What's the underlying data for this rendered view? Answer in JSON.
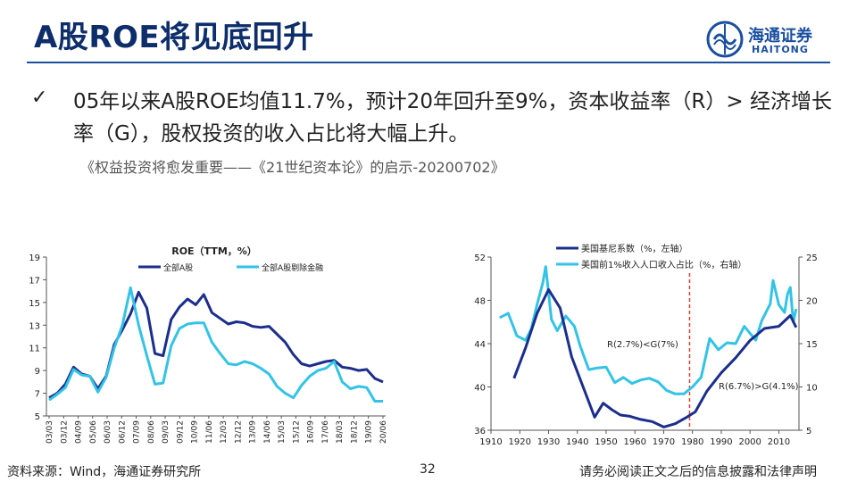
{
  "slide": {
    "title": "A股ROE将见底回升",
    "bullet": "05年以来A股ROE均值11.7%，预计20年回升至9%，资本收益率（R）> 经济增长率（G），股权投资的收入占比将大幅上升。",
    "reference": "《权益投资将愈发重要——《21世纪资本论》的启示-20200702》",
    "source": "资料来源：Wind，海通证券研究所",
    "page_number": "32",
    "disclaimer": "请务必阅读正文之后的信息披露和法律声明",
    "logo_cn": "海通证券",
    "logo_en": "HAITONG",
    "check_glyph": "✓"
  },
  "colors": {
    "dark_series": "#1b2e8c",
    "light_series": "#33c3e6",
    "title": "#0d2d6b",
    "dashed_line": "#e23b2e"
  },
  "chart_data": [
    {
      "type": "line",
      "title": "ROE（TTM，%）",
      "ylim": [
        5,
        19
      ],
      "yticks": [
        5,
        7,
        9,
        11,
        13,
        15,
        17,
        19
      ],
      "x_tick_labels": [
        "03/03",
        "03/12",
        "04/09",
        "05/06",
        "06/03",
        "06/12",
        "07/09",
        "08/06",
        "09/03",
        "09/12",
        "10/09",
        "11/06",
        "12/03",
        "12/12",
        "13/09",
        "14/06",
        "15/03",
        "15/12",
        "16/09",
        "17/06",
        "18/03",
        "18/12",
        "19/09",
        "20/06"
      ],
      "legend_position": "top",
      "series": [
        {
          "name": "全部A股",
          "values": [
            6.6,
            7.0,
            7.8,
            9.3,
            8.7,
            8.5,
            7.4,
            8.5,
            11.3,
            12.6,
            14.0,
            15.9,
            14.5,
            10.5,
            10.3,
            13.5,
            14.6,
            15.3,
            14.8,
            15.7,
            14.1,
            13.6,
            13.1,
            13.3,
            13.2,
            12.9,
            12.8,
            12.9,
            12.2,
            11.5,
            10.4,
            9.6,
            9.4,
            9.6,
            9.8,
            9.9,
            9.3,
            9.2,
            9.0,
            9.1,
            8.3,
            8.0
          ]
        },
        {
          "name": "全部A股剔除金融",
          "values": [
            6.4,
            6.9,
            7.5,
            9.1,
            8.6,
            8.5,
            7.1,
            8.4,
            11.0,
            13.0,
            16.3,
            13.0,
            10.3,
            7.8,
            7.9,
            11.2,
            12.7,
            13.1,
            13.2,
            13.2,
            11.5,
            10.5,
            9.6,
            9.5,
            9.8,
            9.6,
            9.2,
            8.7,
            7.6,
            7.0,
            6.6,
            7.7,
            8.5,
            9.0,
            9.2,
            9.8,
            8.0,
            7.4,
            7.6,
            7.5,
            6.3,
            6.3
          ]
        }
      ]
    },
    {
      "type": "line",
      "x_tick_labels": [
        "1910",
        "1920",
        "1930",
        "1940",
        "1950",
        "1960",
        "1970",
        "1980",
        "1990",
        "2000",
        "2010"
      ],
      "xlim": [
        1910,
        2017
      ],
      "left_axis": {
        "ylim": [
          36,
          52
        ],
        "ticks": [
          36,
          40,
          44,
          48,
          52
        ]
      },
      "right_axis": {
        "ylim": [
          5,
          25
        ],
        "ticks": [
          5,
          10,
          15,
          20,
          25
        ]
      },
      "legend_position": "top-left",
      "annotations": [
        "R(2.7%)<G(7%)",
        "R(6.7%)>G(4.1%)"
      ],
      "vertical_reference_x": 1979,
      "series": [
        {
          "name": "美国基尼系数（%，左轴）",
          "axis": "left",
          "x": [
            1918,
            1922,
            1926,
            1930,
            1934,
            1938,
            1942,
            1946,
            1949,
            1952,
            1955,
            1958,
            1962,
            1966,
            1970,
            1974,
            1978,
            1981,
            1985,
            1990,
            1995,
            2000,
            2005,
            2010,
            2014,
            2016
          ],
          "y": [
            40.8,
            43.6,
            46.8,
            49.0,
            47.3,
            42.8,
            40.0,
            37.2,
            38.5,
            37.9,
            37.4,
            37.3,
            37.0,
            36.8,
            36.3,
            36.6,
            37.2,
            37.7,
            39.6,
            41.3,
            42.7,
            44.3,
            45.4,
            45.6,
            46.6,
            45.5
          ]
        },
        {
          "name": "美国前1%收入人口收入占比（%，右轴）",
          "axis": "right",
          "x": [
            1913,
            1916,
            1919,
            1922,
            1924,
            1926,
            1928,
            1929,
            1931,
            1933,
            1936,
            1939,
            1941,
            1944,
            1947,
            1950,
            1953,
            1956,
            1959,
            1962,
            1965,
            1968,
            1971,
            1974,
            1977,
            1980,
            1983,
            1986,
            1989,
            1992,
            1995,
            1998,
            2000,
            2002,
            2004,
            2007,
            2008,
            2010,
            2012,
            2013,
            2014,
            2015,
            2016
          ],
          "y": [
            18.0,
            18.5,
            15.9,
            15.4,
            16.7,
            19.5,
            22.0,
            23.9,
            17.8,
            16.5,
            18.2,
            17.0,
            14.7,
            12.0,
            12.2,
            12.3,
            10.5,
            11.1,
            10.4,
            10.8,
            11.0,
            10.6,
            9.6,
            9.2,
            9.2,
            10.0,
            11.1,
            15.6,
            14.3,
            15.1,
            15.0,
            17.0,
            16.2,
            15.4,
            17.6,
            19.6,
            22.3,
            19.5,
            18.6,
            20.7,
            21.5,
            17.5,
            19.0
          ]
        }
      ]
    }
  ]
}
